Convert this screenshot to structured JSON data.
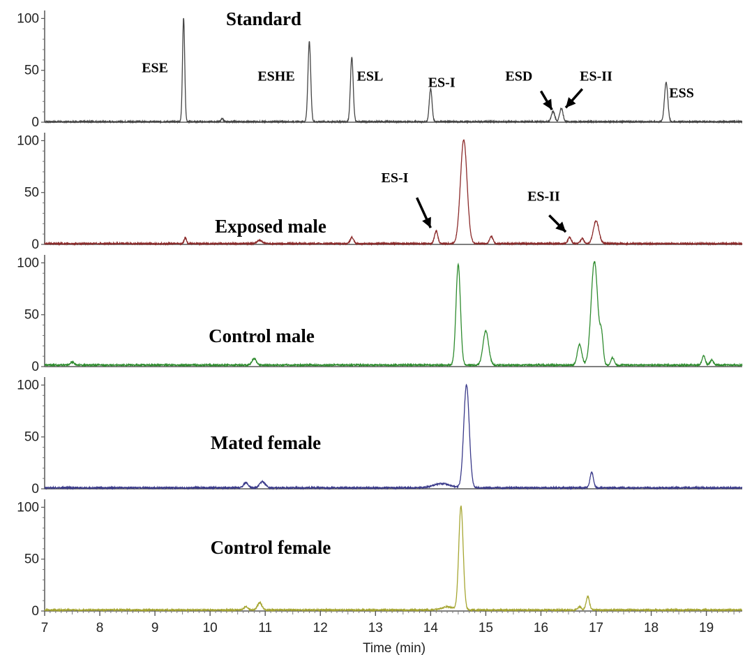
{
  "chart_data": {
    "type": "line",
    "xlabel": "Time (min)",
    "xlim": [
      7,
      19.65
    ],
    "x_ticks": [
      "7",
      "8",
      "9",
      "10",
      "11",
      "12",
      "13",
      "14",
      "15",
      "16",
      "17",
      "18",
      "19"
    ],
    "ylim": [
      0,
      105
    ],
    "y_ticks": [
      "0",
      "50",
      "100"
    ],
    "panels": [
      {
        "label": "Standard",
        "color": "#444444",
        "baseline": 0.5,
        "peaks": [
          {
            "x": 9.52,
            "y": 100,
            "w": 0.02
          },
          {
            "x": 10.22,
            "y": 3,
            "w": 0.02
          },
          {
            "x": 11.8,
            "y": 77,
            "w": 0.025
          },
          {
            "x": 12.57,
            "y": 62,
            "w": 0.025
          },
          {
            "x": 14.0,
            "y": 32,
            "w": 0.025
          },
          {
            "x": 16.22,
            "y": 10,
            "w": 0.03
          },
          {
            "x": 16.37,
            "y": 13,
            "w": 0.03
          },
          {
            "x": 18.27,
            "y": 38,
            "w": 0.03
          }
        ],
        "annotations": [
          {
            "text": "ESE",
            "x": 9.0,
            "y": 48
          },
          {
            "text": "ESHE",
            "x": 11.2,
            "y": 40
          },
          {
            "text": "ESL",
            "x": 12.9,
            "y": 40
          },
          {
            "text": "ES-I",
            "x": 14.2,
            "y": 34
          },
          {
            "text": "ESD",
            "x": 15.6,
            "y": 40
          },
          {
            "text": "ES-II",
            "x": 17.0,
            "y": 40
          },
          {
            "text": "ESS",
            "x": 18.55,
            "y": 24
          }
        ],
        "arrows": [
          {
            "from": [
              16.0,
              30
            ],
            "to": [
              16.2,
              12
            ]
          },
          {
            "from": [
              16.75,
              32
            ],
            "to": [
              16.45,
              14
            ]
          }
        ]
      },
      {
        "label": "Exposed male",
        "color": "#8b2a2a",
        "baseline": 0.8,
        "peaks": [
          {
            "x": 9.55,
            "y": 6,
            "w": 0.02
          },
          {
            "x": 10.9,
            "y": 3,
            "w": 0.05
          },
          {
            "x": 12.57,
            "y": 6,
            "w": 0.03
          },
          {
            "x": 14.1,
            "y": 12,
            "w": 0.03
          },
          {
            "x": 14.6,
            "y": 100,
            "w": 0.06
          },
          {
            "x": 15.1,
            "y": 7,
            "w": 0.03
          },
          {
            "x": 16.52,
            "y": 6,
            "w": 0.03
          },
          {
            "x": 16.75,
            "y": 5,
            "w": 0.03
          },
          {
            "x": 17.0,
            "y": 22,
            "w": 0.05
          }
        ],
        "annotations": [
          {
            "text": "ES-I",
            "x": 13.35,
            "y": 60
          },
          {
            "text": "ES-II",
            "x": 16.05,
            "y": 42
          }
        ],
        "arrows": [
          {
            "from": [
              13.75,
              45
            ],
            "to": [
              14.0,
              16
            ]
          },
          {
            "from": [
              16.15,
              28
            ],
            "to": [
              16.45,
              12
            ]
          }
        ]
      },
      {
        "label": "Control male",
        "color": "#2e8b2e",
        "baseline": 1.5,
        "peaks": [
          {
            "x": 7.5,
            "y": 3,
            "w": 0.03
          },
          {
            "x": 10.8,
            "y": 6,
            "w": 0.04
          },
          {
            "x": 14.5,
            "y": 97,
            "w": 0.04
          },
          {
            "x": 15.0,
            "y": 33,
            "w": 0.05
          },
          {
            "x": 16.7,
            "y": 20,
            "w": 0.04
          },
          {
            "x": 16.97,
            "y": 100,
            "w": 0.06
          },
          {
            "x": 17.1,
            "y": 25,
            "w": 0.03
          },
          {
            "x": 17.3,
            "y": 7,
            "w": 0.03
          },
          {
            "x": 18.95,
            "y": 9,
            "w": 0.03
          },
          {
            "x": 19.1,
            "y": 5,
            "w": 0.03
          }
        ],
        "annotations": [],
        "arrows": []
      },
      {
        "label": "Mated female",
        "color": "#3a3a8a",
        "baseline": 1.0,
        "peaks": [
          {
            "x": 10.65,
            "y": 5,
            "w": 0.04
          },
          {
            "x": 10.95,
            "y": 6,
            "w": 0.05
          },
          {
            "x": 14.2,
            "y": 4,
            "w": 0.15
          },
          {
            "x": 14.65,
            "y": 99,
            "w": 0.05
          },
          {
            "x": 16.92,
            "y": 15,
            "w": 0.03
          }
        ],
        "annotations": [],
        "arrows": []
      },
      {
        "label": "Control female",
        "color": "#a6a632",
        "baseline": 1.0,
        "peaks": [
          {
            "x": 10.65,
            "y": 3,
            "w": 0.04
          },
          {
            "x": 10.9,
            "y": 7,
            "w": 0.04
          },
          {
            "x": 14.3,
            "y": 3,
            "w": 0.1
          },
          {
            "x": 14.55,
            "y": 100,
            "w": 0.04
          },
          {
            "x": 16.7,
            "y": 3,
            "w": 0.03
          },
          {
            "x": 16.85,
            "y": 13,
            "w": 0.03
          }
        ],
        "annotations": [],
        "arrows": []
      }
    ]
  }
}
